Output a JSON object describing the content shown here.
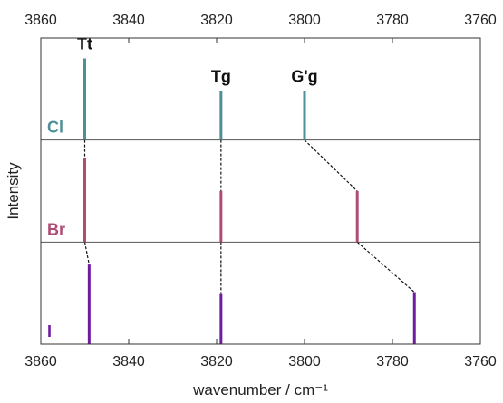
{
  "chart_data": {
    "type": "stick-spectrum",
    "title": "",
    "xlabel": "wavenumber / cm⁻¹",
    "ylabel": "Intensity",
    "xlim": [
      3860,
      3760
    ],
    "x_reversed": true,
    "xticks": [
      3860,
      3840,
      3820,
      3800,
      3780,
      3760
    ],
    "xtick_labels": [
      "3860",
      "3840",
      "3820",
      "3800",
      "3780",
      "3760"
    ],
    "grid": false,
    "panels": [
      {
        "name": "Cl",
        "color": "#4f8f98",
        "peaks": [
          {
            "x": 3850,
            "intensity": 0.8,
            "label": "Tt"
          },
          {
            "x": 3819,
            "intensity": 0.48,
            "label": "Tg"
          },
          {
            "x": 3800,
            "intensity": 0.48,
            "label": "G'g"
          }
        ]
      },
      {
        "name": "Br",
        "color": "#b04b74",
        "peaks": [
          {
            "x": 3850,
            "intensity": 0.82
          },
          {
            "x": 3819,
            "intensity": 0.5
          },
          {
            "x": 3788,
            "intensity": 0.5
          }
        ]
      },
      {
        "name": "I",
        "color": "#6e1d9e",
        "peaks": [
          {
            "x": 3849,
            "intensity": 0.78
          },
          {
            "x": 3819,
            "intensity": 0.49
          },
          {
            "x": 3775,
            "intensity": 0.51
          }
        ]
      }
    ],
    "correlation_lines": [
      [
        [
          0,
          0
        ],
        [
          1,
          0
        ]
      ],
      [
        [
          1,
          0
        ],
        [
          2,
          0
        ]
      ],
      [
        [
          0,
          1
        ],
        [
          1,
          1
        ]
      ],
      [
        [
          1,
          1
        ],
        [
          2,
          1
        ]
      ],
      [
        [
          0,
          2
        ],
        [
          1,
          2
        ]
      ],
      [
        [
          1,
          2
        ],
        [
          2,
          2
        ]
      ]
    ]
  }
}
